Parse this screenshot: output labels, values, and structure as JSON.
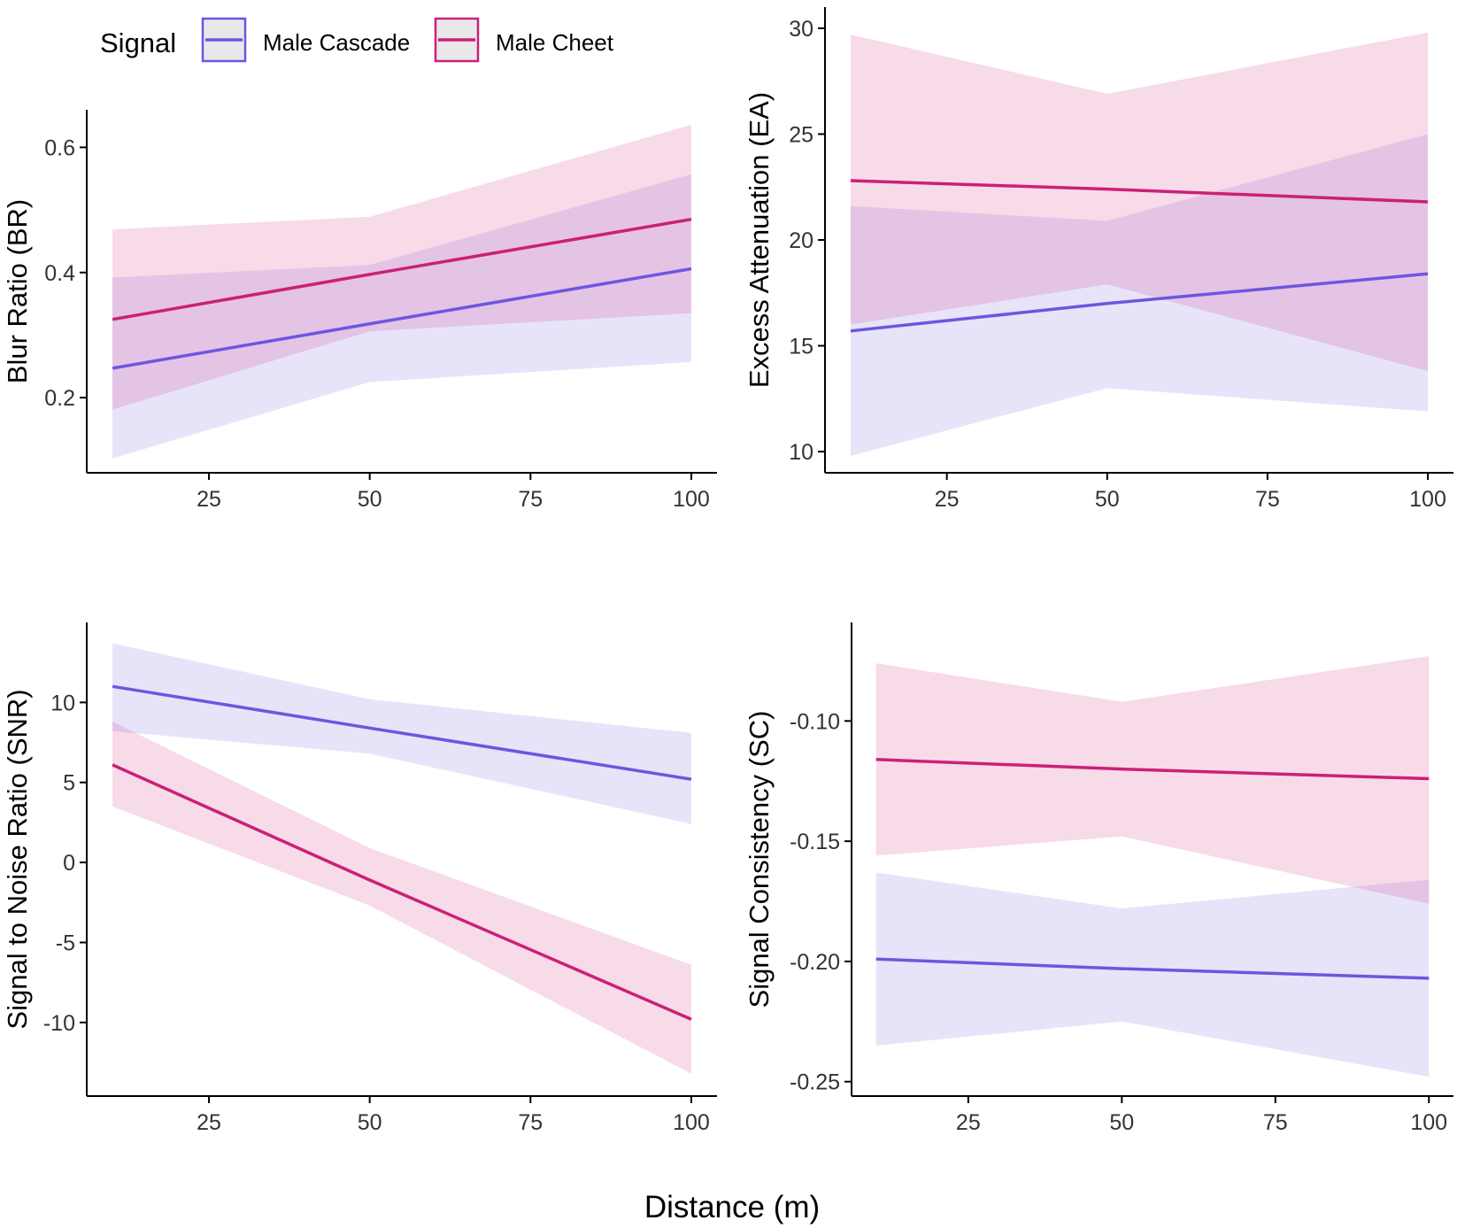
{
  "legend": {
    "title": "Signal",
    "items": [
      {
        "label": "Male Cascade",
        "color": "#6b57e0",
        "fill": "#e6e3fa"
      },
      {
        "label": "Male Cheet",
        "color": "#cc1f78",
        "fill": "#f8d7e6"
      }
    ]
  },
  "shared_xlabel": "Distance (m)",
  "chart_data": [
    {
      "type": "line",
      "panel": "top-left",
      "title": "",
      "xlabel": "Distance (m)",
      "ylabel": "Blur Ratio (BR)",
      "xlim": [
        6,
        104
      ],
      "ylim": [
        0.08,
        0.66
      ],
      "xticks": [
        25,
        50,
        75,
        100
      ],
      "xtick_labels": [
        "25",
        "50",
        "75",
        "100"
      ],
      "yticks": [
        0.2,
        0.4,
        0.6
      ],
      "ytick_labels": [
        "0.2",
        "0.4",
        "0.6"
      ],
      "x": [
        10,
        50,
        100
      ],
      "series": [
        {
          "name": "Male Cascade",
          "values": [
            0.247,
            0.318,
            0.406
          ],
          "lower": [
            0.103,
            0.225,
            0.257
          ],
          "upper": [
            0.392,
            0.412,
            0.557
          ]
        },
        {
          "name": "Male Cheet",
          "values": [
            0.325,
            0.397,
            0.485
          ],
          "lower": [
            0.181,
            0.306,
            0.335
          ],
          "upper": [
            0.469,
            0.489,
            0.636
          ]
        }
      ]
    },
    {
      "type": "line",
      "panel": "top-right",
      "title": "",
      "xlabel": "Distance (m)",
      "ylabel": "Excess Attenuation (EA)",
      "xlim": [
        6,
        104
      ],
      "ylim": [
        9.0,
        31.0
      ],
      "xticks": [
        25,
        50,
        75,
        100
      ],
      "xtick_labels": [
        "25",
        "50",
        "75",
        "100"
      ],
      "yticks": [
        10,
        15,
        20,
        25,
        30
      ],
      "ytick_labels": [
        "10",
        "15",
        "20",
        "25",
        "30"
      ],
      "x": [
        10,
        50,
        100
      ],
      "series": [
        {
          "name": "Male Cascade",
          "values": [
            15.7,
            17.0,
            18.4
          ],
          "lower": [
            9.8,
            13.0,
            11.9
          ],
          "upper": [
            21.6,
            20.9,
            25.0
          ]
        },
        {
          "name": "Male Cheet",
          "values": [
            22.8,
            22.4,
            21.8
          ],
          "lower": [
            16.0,
            17.9,
            13.8
          ],
          "upper": [
            29.7,
            26.9,
            29.8
          ]
        }
      ]
    },
    {
      "type": "line",
      "panel": "bottom-left",
      "title": "",
      "xlabel": "Distance (m)",
      "ylabel": "Signal to Noise Ratio (SNR)",
      "xlim": [
        6,
        104
      ],
      "ylim": [
        -14.6,
        15.0
      ],
      "xticks": [
        25,
        50,
        75,
        100
      ],
      "xtick_labels": [
        "25",
        "50",
        "75",
        "100"
      ],
      "yticks": [
        -10,
        -5,
        0,
        5,
        10
      ],
      "ytick_labels": [
        "-10",
        "-5",
        "0",
        "5",
        "10"
      ],
      "x": [
        10,
        50,
        100
      ],
      "series": [
        {
          "name": "Male Cascade",
          "values": [
            11.0,
            8.4,
            5.2
          ],
          "lower": [
            8.2,
            6.8,
            2.4
          ],
          "upper": [
            13.7,
            10.2,
            8.1
          ]
        },
        {
          "name": "Male Cheet",
          "values": [
            6.1,
            -1.1,
            -9.8
          ],
          "lower": [
            3.5,
            -2.7,
            -13.2
          ],
          "upper": [
            8.8,
            0.9,
            -6.4
          ]
        }
      ]
    },
    {
      "type": "line",
      "panel": "bottom-right",
      "title": "",
      "xlabel": "Distance (m)",
      "ylabel": "Signal Consistency (SC)",
      "xlim": [
        6,
        104
      ],
      "ylim": [
        -0.256,
        -0.059
      ],
      "xticks": [
        25,
        50,
        75,
        100
      ],
      "xtick_labels": [
        "25",
        "50",
        "75",
        "100"
      ],
      "yticks": [
        -0.25,
        -0.2,
        -0.15,
        -0.1
      ],
      "ytick_labels": [
        "-0.25",
        "-0.20",
        "-0.15",
        "-0.10"
      ],
      "x": [
        10,
        50,
        100
      ],
      "series": [
        {
          "name": "Male Cascade",
          "values": [
            -0.199,
            -0.203,
            -0.207
          ],
          "lower": [
            -0.235,
            -0.225,
            -0.248
          ],
          "upper": [
            -0.163,
            -0.178,
            -0.166
          ]
        },
        {
          "name": "Male Cheet",
          "values": [
            -0.116,
            -0.12,
            -0.124
          ],
          "lower": [
            -0.156,
            -0.148,
            -0.176
          ],
          "upper": [
            -0.076,
            -0.092,
            -0.073
          ]
        }
      ]
    }
  ]
}
